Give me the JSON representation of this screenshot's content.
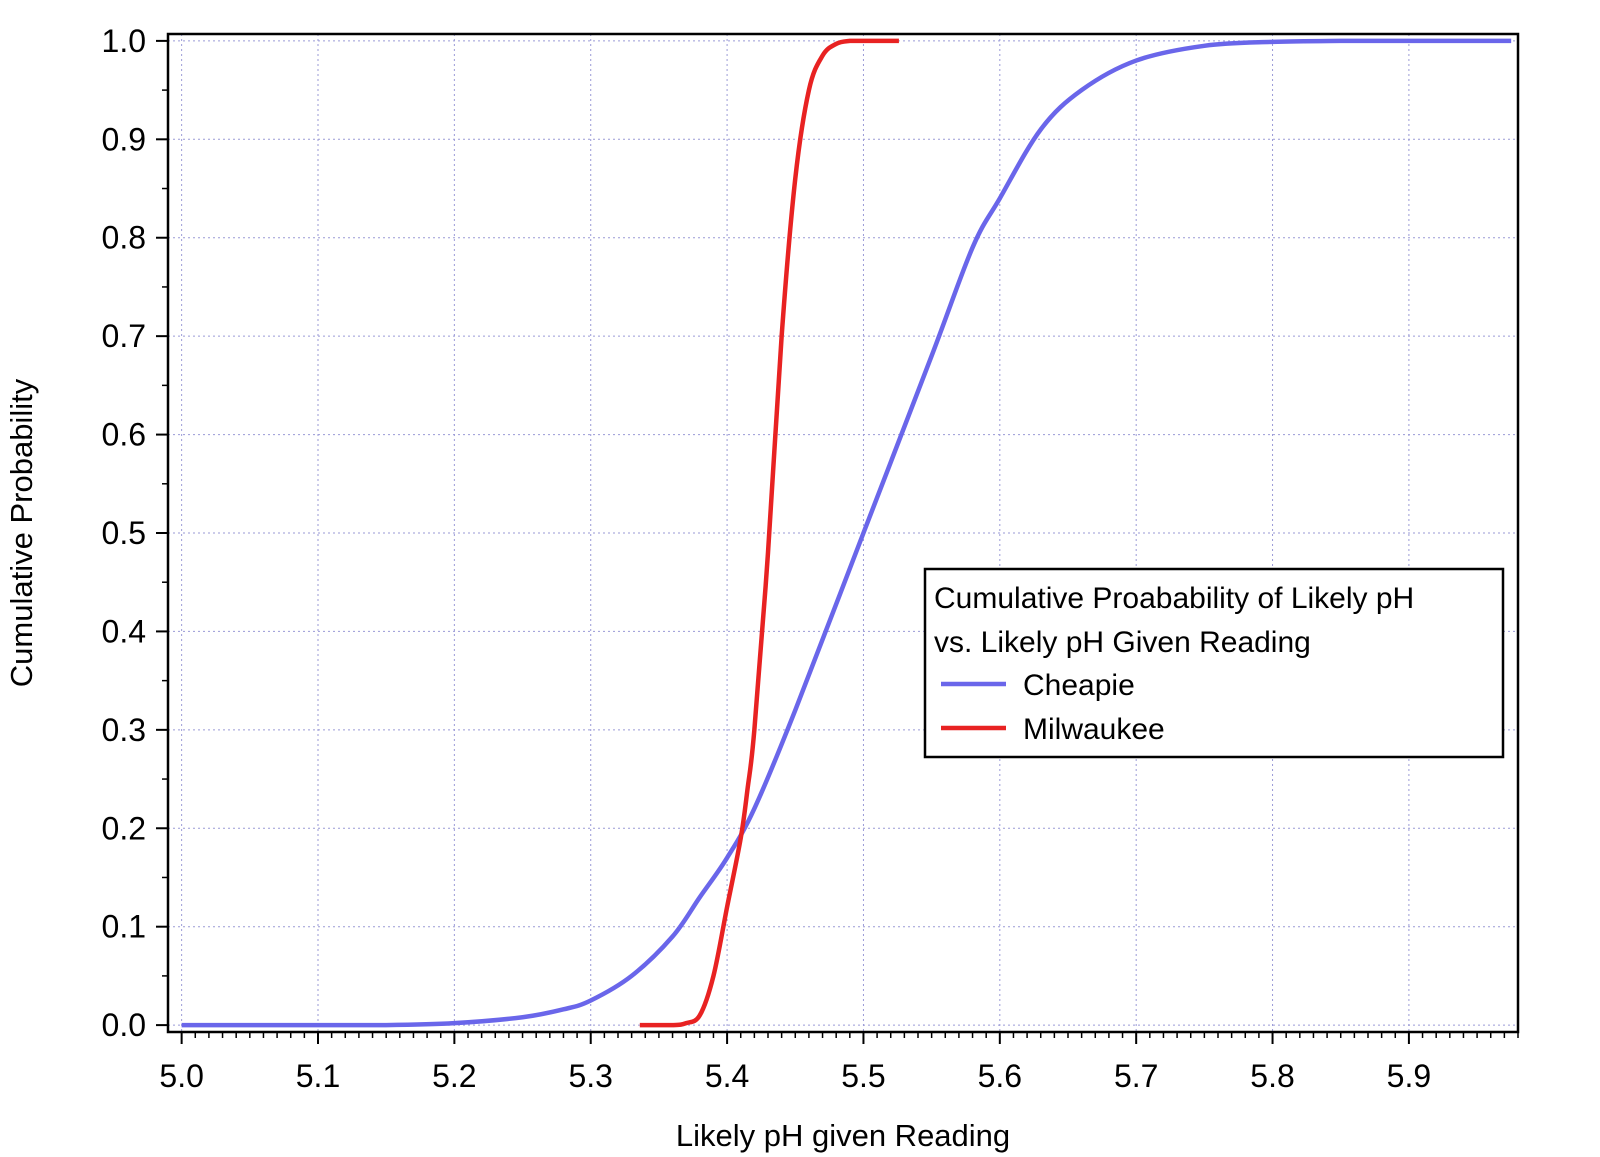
{
  "chart_data": {
    "type": "line",
    "title": "",
    "xlabel": "Likely pH given Reading",
    "ylabel": "Cumulative Probability",
    "xlim": [
      4.99,
      5.98
    ],
    "ylim": [
      -0.007,
      1.007
    ],
    "x_ticks": [
      "5.0",
      "5.1",
      "5.2",
      "5.3",
      "5.4",
      "5.5",
      "5.6",
      "5.7",
      "5.8",
      "5.9"
    ],
    "y_ticks": [
      "0.0",
      "0.1",
      "0.2",
      "0.3",
      "0.4",
      "0.5",
      "0.6",
      "0.7",
      "0.8",
      "0.9",
      "1.0"
    ],
    "grid": true,
    "legend": {
      "position": "right-middle",
      "title_lines": [
        "Cumulative Proabability of Likely pH",
        "vs. Likely pH Given Reading"
      ]
    },
    "series": [
      {
        "name": "Cheapie",
        "color": "#6a66ea",
        "x": [
          5.0,
          5.1,
          5.15,
          5.2,
          5.25,
          5.28,
          5.3,
          5.33,
          5.36,
          5.38,
          5.4,
          5.42,
          5.45,
          5.5,
          5.55,
          5.58,
          5.6,
          5.63,
          5.66,
          5.7,
          5.75,
          5.8,
          5.85,
          5.9,
          5.975
        ],
        "y": [
          0.0,
          0.0,
          0.0,
          0.002,
          0.008,
          0.016,
          0.025,
          0.05,
          0.09,
          0.13,
          0.17,
          0.22,
          0.32,
          0.5,
          0.68,
          0.79,
          0.84,
          0.91,
          0.95,
          0.98,
          0.995,
          0.999,
          1.0,
          1.0,
          1.0
        ]
      },
      {
        "name": "Milwaukee",
        "color": "#e82222",
        "x": [
          5.336,
          5.36,
          5.37,
          5.38,
          5.39,
          5.4,
          5.41,
          5.415,
          5.42,
          5.43,
          5.44,
          5.45,
          5.46,
          5.47,
          5.48,
          5.49,
          5.5,
          5.526
        ],
        "y": [
          0.0,
          0.0,
          0.002,
          0.01,
          0.05,
          0.12,
          0.19,
          0.24,
          0.3,
          0.48,
          0.7,
          0.86,
          0.95,
          0.985,
          0.997,
          1.0,
          1.0,
          1.0
        ]
      }
    ]
  }
}
